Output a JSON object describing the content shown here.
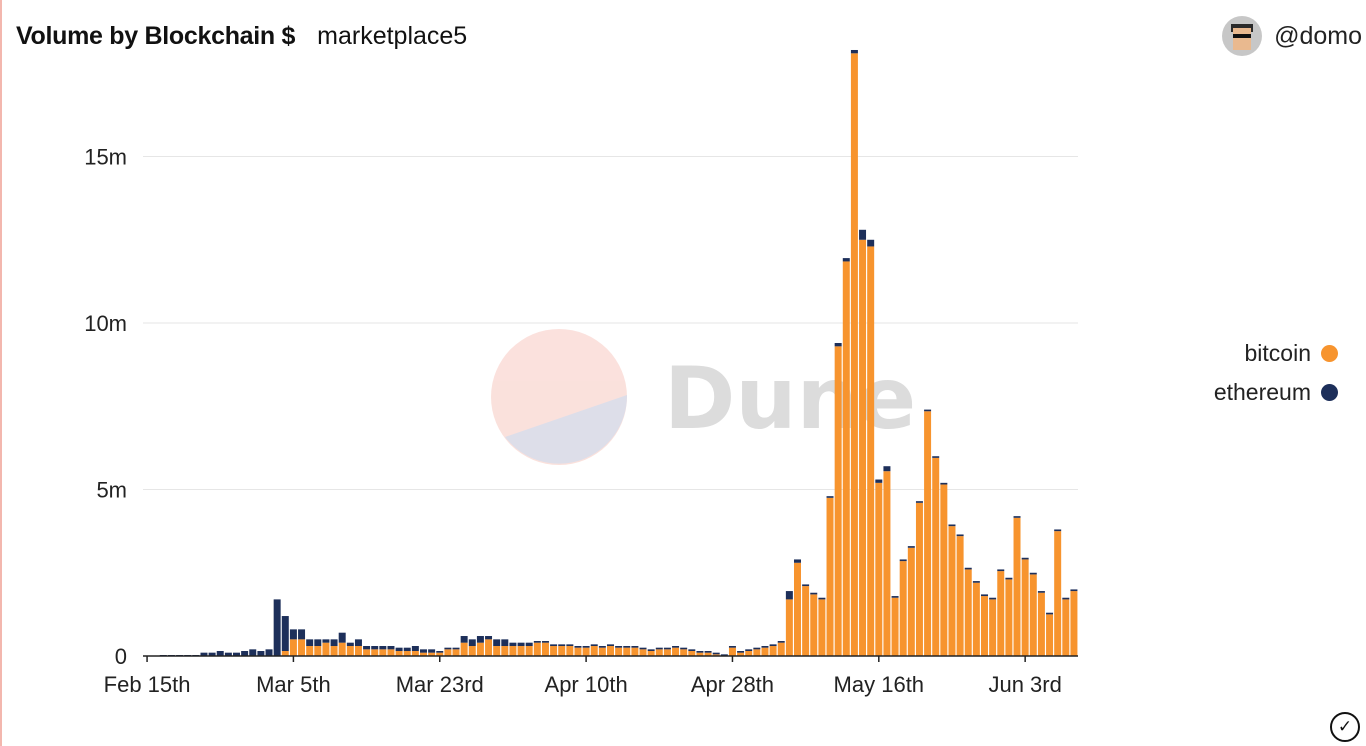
{
  "header": {
    "title": "Volume by Blockchain $",
    "subtitle": "marketplace5"
  },
  "user": {
    "handle": "@domo",
    "avatar_icon": "pixel-avatar-icon"
  },
  "watermark": {
    "text": "Dune"
  },
  "legend": [
    {
      "label": "bitcoin",
      "color": "#f7942e"
    },
    {
      "label": "ethereum",
      "color": "#1d2f5a"
    }
  ],
  "check_icon": "✓",
  "chart_data": {
    "type": "bar",
    "stacked": true,
    "title": "Volume by Blockchain $",
    "xlabel": "",
    "ylabel": "",
    "ylim": [
      0,
      18500000
    ],
    "grid": true,
    "legend_position": "right",
    "y_ticks": [
      {
        "value": 0,
        "label": "0"
      },
      {
        "value": 5000000,
        "label": "5m"
      },
      {
        "value": 10000000,
        "label": "10m"
      },
      {
        "value": 15000000,
        "label": "15m"
      }
    ],
    "x_ticks": [
      {
        "index": 0,
        "label": "Feb 15th"
      },
      {
        "index": 18,
        "label": "Mar 5th"
      },
      {
        "index": 36,
        "label": "Mar 23rd"
      },
      {
        "index": 54,
        "label": "Apr 10th"
      },
      {
        "index": 72,
        "label": "Apr 28th"
      },
      {
        "index": 90,
        "label": "May 16th"
      },
      {
        "index": 108,
        "label": "Jun 3rd"
      }
    ],
    "x_start": "Feb 15th",
    "x_end": "Jun 3rd",
    "series": [
      {
        "name": "bitcoin",
        "color": "#f7942e",
        "values": [
          0,
          0,
          0,
          0,
          0,
          0,
          0,
          0,
          0,
          0,
          0,
          0,
          0,
          0,
          0,
          0,
          0,
          150000,
          500000,
          500000,
          300000,
          300000,
          400000,
          300000,
          400000,
          300000,
          300000,
          200000,
          200000,
          200000,
          200000,
          150000,
          150000,
          150000,
          100000,
          100000,
          100000,
          200000,
          200000,
          400000,
          300000,
          400000,
          500000,
          300000,
          300000,
          300000,
          300000,
          300000,
          400000,
          400000,
          300000,
          300000,
          300000,
          250000,
          250000,
          300000,
          250000,
          300000,
          250000,
          250000,
          250000,
          200000,
          150000,
          200000,
          200000,
          250000,
          200000,
          150000,
          100000,
          100000,
          50000,
          0,
          250000,
          100000,
          150000,
          200000,
          250000,
          300000,
          400000,
          1700000,
          2800000,
          2100000,
          1850000,
          1700000,
          4750000,
          9300000,
          11850000,
          18100000,
          12500000,
          12300000,
          5200000,
          5550000,
          1750000,
          2850000,
          3250000,
          4600000,
          7350000,
          5950000,
          5150000,
          3900000,
          3600000,
          2600000,
          2200000,
          1800000,
          1700000,
          2550000,
          2300000,
          4150000,
          2900000,
          2450000,
          1900000,
          1250000,
          3750000,
          1700000,
          1950000
        ]
      },
      {
        "name": "ethereum",
        "color": "#1d2f5a",
        "values": [
          0,
          0,
          30000,
          30000,
          30000,
          30000,
          30000,
          100000,
          100000,
          150000,
          100000,
          100000,
          150000,
          200000,
          150000,
          200000,
          1700000,
          1050000,
          300000,
          300000,
          200000,
          200000,
          100000,
          200000,
          300000,
          100000,
          200000,
          100000,
          100000,
          100000,
          100000,
          100000,
          100000,
          150000,
          100000,
          100000,
          50000,
          50000,
          50000,
          200000,
          200000,
          200000,
          100000,
          200000,
          200000,
          100000,
          100000,
          100000,
          50000,
          50000,
          50000,
          50000,
          50000,
          50000,
          50000,
          50000,
          50000,
          50000,
          50000,
          50000,
          50000,
          50000,
          50000,
          50000,
          50000,
          50000,
          50000,
          50000,
          50000,
          50000,
          50000,
          50000,
          50000,
          50000,
          50000,
          50000,
          50000,
          50000,
          50000,
          250000,
          100000,
          50000,
          50000,
          50000,
          50000,
          100000,
          100000,
          100000,
          300000,
          200000,
          100000,
          150000,
          50000,
          50000,
          50000,
          50000,
          50000,
          50000,
          50000,
          50000,
          50000,
          50000,
          50000,
          50000,
          50000,
          50000,
          50000,
          50000,
          50000,
          50000,
          50000,
          50000,
          50000,
          50000,
          50000
        ]
      }
    ]
  }
}
